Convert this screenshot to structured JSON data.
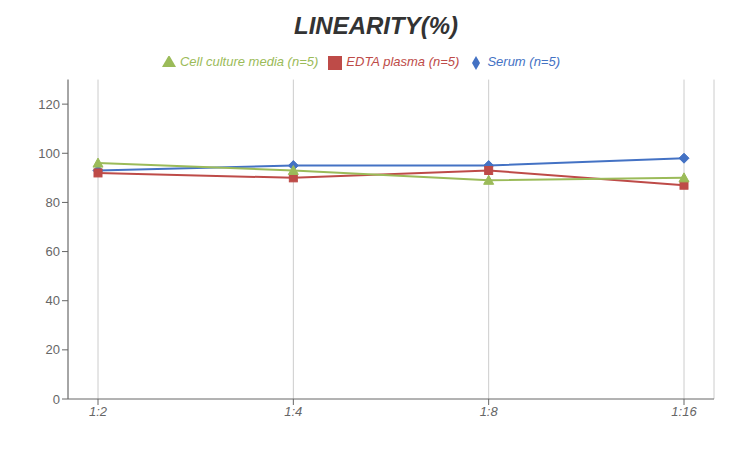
{
  "chart_data": {
    "type": "line",
    "title": "LINEARITY(%)",
    "categories": [
      "1:2",
      "1:4",
      "1:8",
      "1:16"
    ],
    "series": [
      {
        "name": "Serum (n=5)",
        "color": "#4472C4",
        "marker": "diamond",
        "values": [
          93,
          95,
          95,
          98
        ]
      },
      {
        "name": "EDTA plasma (n=5)",
        "color": "#BE4B48",
        "marker": "square",
        "values": [
          92,
          90,
          93,
          87
        ]
      },
      {
        "name": "Cell culture media (n=5)",
        "color": "#9BBB59",
        "marker": "triangle",
        "values": [
          96,
          93,
          89,
          90
        ]
      }
    ],
    "ylim": [
      0,
      130
    ],
    "yticks": [
      0,
      20,
      40,
      60,
      80,
      100,
      120
    ],
    "grid": "x",
    "legend": "top"
  }
}
